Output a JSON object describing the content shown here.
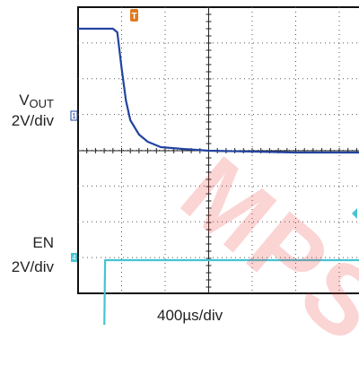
{
  "chart_data": {
    "type": "line",
    "title": "",
    "xlabel": "400µs/div",
    "divisions": {
      "x": 10,
      "y": 8
    },
    "grid": true,
    "series": [
      {
        "name": "VOUT",
        "label": "V",
        "label_sub": "OUT",
        "scale": "2V/div",
        "color": "#2244a0",
        "marker": "1",
        "points": [
          [
            0,
            3.4
          ],
          [
            0.8,
            3.4
          ],
          [
            0.9,
            3.3
          ],
          [
            1.0,
            2.3
          ],
          [
            1.1,
            1.4
          ],
          [
            1.2,
            0.85
          ],
          [
            1.4,
            0.45
          ],
          [
            1.6,
            0.25
          ],
          [
            1.9,
            0.1
          ],
          [
            2.4,
            0.05
          ],
          [
            3.0,
            0.0
          ],
          [
            5.0,
            -0.05
          ],
          [
            10,
            -0.05
          ]
        ]
      },
      {
        "name": "EN",
        "label": "EN",
        "scale": "2V/div",
        "color": "#45c4d3",
        "marker": "4",
        "points": [
          [
            0,
            -5.2
          ],
          [
            0.6,
            -5.2
          ],
          [
            0.62,
            -3.05
          ],
          [
            1.2,
            -3.05
          ],
          [
            10,
            -3.05
          ]
        ]
      }
    ],
    "trigger_marker": "T",
    "trigger_color": "#e07a20"
  },
  "watermark": "MPS"
}
